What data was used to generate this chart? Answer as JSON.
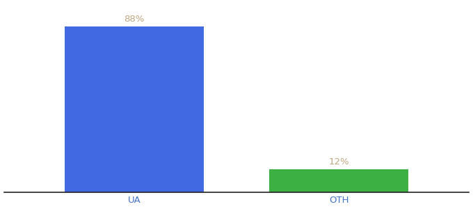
{
  "categories": [
    "UA",
    "OTH"
  ],
  "values": [
    88,
    12
  ],
  "bar_colors": [
    "#4169e1",
    "#3cb043"
  ],
  "label_color": "#c0a882",
  "value_labels": [
    "88%",
    "12%"
  ],
  "ylim": [
    0,
    100
  ],
  "background_color": "#ffffff",
  "tick_fontsize": 9.5,
  "label_fontsize": 9.5,
  "bar_positions": [
    0.28,
    0.72
  ],
  "bar_width": 0.3,
  "xlim": [
    0,
    1
  ]
}
